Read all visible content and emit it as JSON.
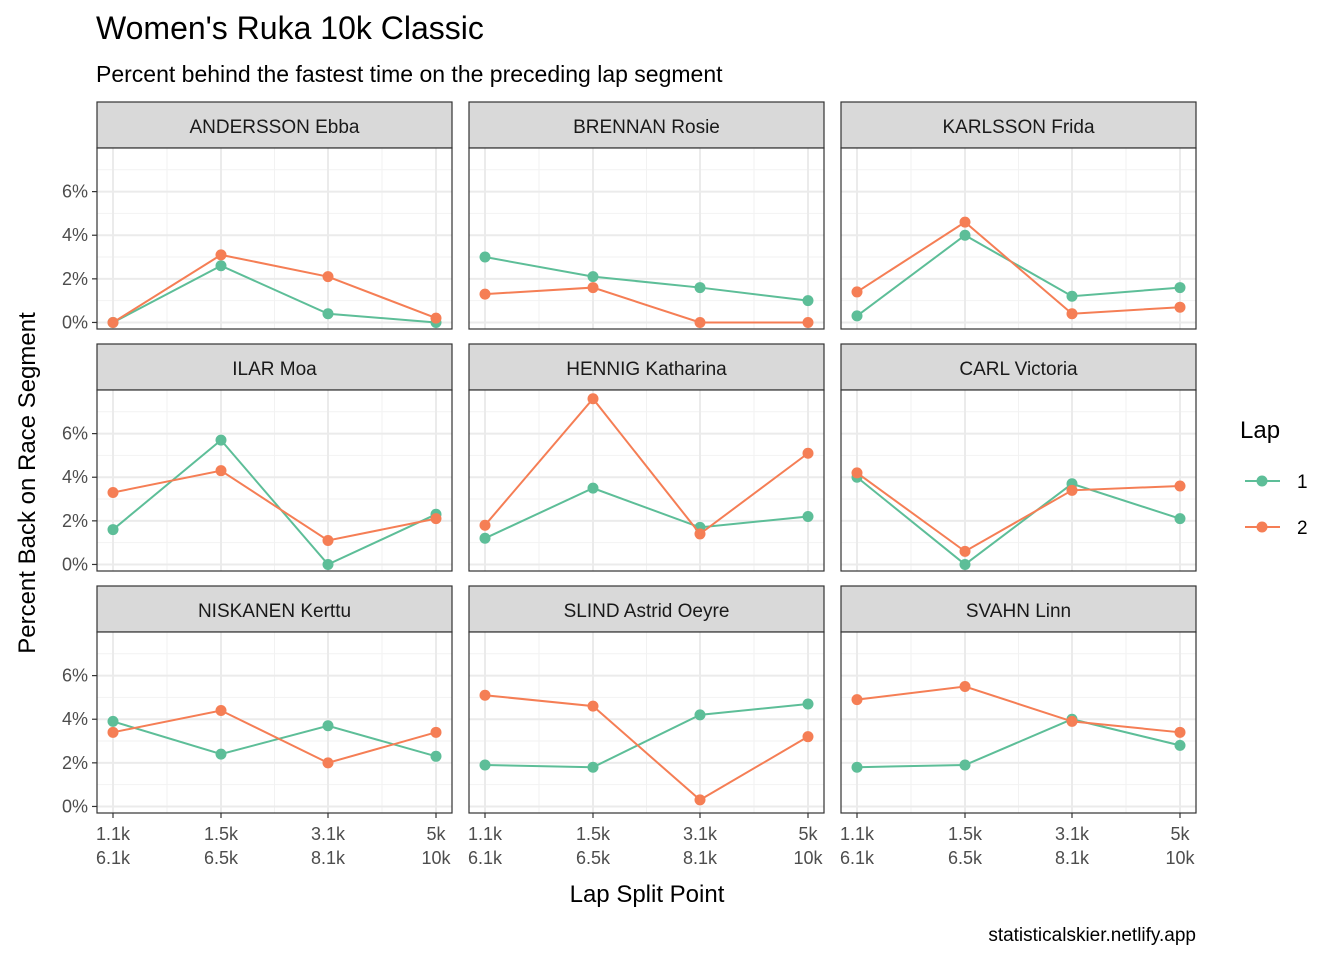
{
  "title": "Women's Ruka 10k Classic",
  "subtitle": "Percent behind the fastest time on the preceding lap segment",
  "caption": "statisticalskier.netlify.app",
  "colors": {
    "lap1": "#5DBE98",
    "lap2": "#F57E55",
    "strip_fill": "#D9D9D9",
    "grid": "#EBEBEB"
  },
  "chart_data": {
    "type": "line",
    "facet_layout": "3x3",
    "xlabel": "Lap Split Point",
    "ylabel": "Percent Back on Race Segment",
    "x_ticks": [
      {
        "top": "1.1k",
        "bottom": "6.1k"
      },
      {
        "top": "1.5k",
        "bottom": "6.5k"
      },
      {
        "top": "3.1k",
        "bottom": "8.1k"
      },
      {
        "top": "5k",
        "bottom": "10k"
      }
    ],
    "x_values": [
      1.1,
      1.5,
      3.1,
      5
    ],
    "y_ticks": [
      "0%",
      "2%",
      "4%",
      "6%"
    ],
    "y_tick_values": [
      0,
      2,
      4,
      6
    ],
    "ylim": [
      -0.3,
      8.0
    ],
    "grid": true,
    "legend": {
      "title": "Lap",
      "position": "right",
      "entries": [
        "1",
        "2"
      ]
    },
    "panels": [
      {
        "name": "ANDERSSON Ebba",
        "series": [
          {
            "name": "1",
            "values": [
              0.0,
              2.6,
              0.4,
              0.0
            ]
          },
          {
            "name": "2",
            "values": [
              0.0,
              3.1,
              2.1,
              0.2
            ]
          }
        ]
      },
      {
        "name": "BRENNAN Rosie",
        "series": [
          {
            "name": "1",
            "values": [
              3.0,
              2.1,
              1.6,
              1.0
            ]
          },
          {
            "name": "2",
            "values": [
              1.3,
              1.6,
              0.0,
              0.0
            ]
          }
        ]
      },
      {
        "name": "KARLSSON Frida",
        "series": [
          {
            "name": "1",
            "values": [
              0.3,
              4.0,
              1.2,
              1.6
            ]
          },
          {
            "name": "2",
            "values": [
              1.4,
              4.6,
              0.4,
              0.7
            ]
          }
        ]
      },
      {
        "name": "ILAR Moa",
        "series": [
          {
            "name": "1",
            "values": [
              1.6,
              5.7,
              0.0,
              2.3
            ]
          },
          {
            "name": "2",
            "values": [
              3.3,
              4.3,
              1.1,
              2.1
            ]
          }
        ]
      },
      {
        "name": "HENNIG Katharina",
        "series": [
          {
            "name": "1",
            "values": [
              1.2,
              3.5,
              1.7,
              2.2
            ]
          },
          {
            "name": "2",
            "values": [
              1.8,
              7.6,
              1.4,
              5.1
            ]
          }
        ]
      },
      {
        "name": "CARL Victoria",
        "series": [
          {
            "name": "1",
            "values": [
              4.0,
              0.0,
              3.7,
              2.1
            ]
          },
          {
            "name": "2",
            "values": [
              4.2,
              0.6,
              3.4,
              3.6
            ]
          }
        ]
      },
      {
        "name": "NISKANEN Kerttu",
        "series": [
          {
            "name": "1",
            "values": [
              3.9,
              2.4,
              3.7,
              2.3
            ]
          },
          {
            "name": "2",
            "values": [
              3.4,
              4.4,
              2.0,
              3.4
            ]
          }
        ]
      },
      {
        "name": "SLIND Astrid Oeyre",
        "series": [
          {
            "name": "1",
            "values": [
              1.9,
              1.8,
              4.2,
              4.7
            ]
          },
          {
            "name": "2",
            "values": [
              5.1,
              4.6,
              0.3,
              3.2
            ]
          }
        ]
      },
      {
        "name": "SVAHN Linn",
        "series": [
          {
            "name": "1",
            "values": [
              1.8,
              1.9,
              4.0,
              2.8
            ]
          },
          {
            "name": "2",
            "values": [
              4.9,
              5.5,
              3.9,
              3.4
            ]
          }
        ]
      }
    ]
  }
}
